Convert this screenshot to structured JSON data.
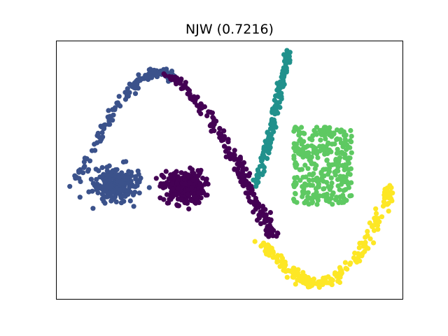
{
  "chart_data": {
    "type": "scatter",
    "title": "NJW (0.7216)",
    "xlabel": "",
    "ylabel": "",
    "xlim": [
      0,
      100
    ],
    "ylim": [
      0,
      100
    ],
    "grid": false,
    "show_ticks": false,
    "colors": {
      "dark_blue": "#3b528b",
      "purple": "#440154",
      "teal": "#21918c",
      "green": "#5ec962",
      "yellow": "#fde725"
    },
    "clusters": [
      {
        "shape": "curve",
        "color": "dark_blue",
        "n": 150,
        "spread": 0.9,
        "path": [
          [
            5,
            45.6
          ],
          [
            8,
            52
          ],
          [
            11,
            59.5
          ],
          [
            14,
            67.1
          ],
          [
            17,
            73.5
          ],
          [
            20,
            78.9
          ],
          [
            23,
            83
          ],
          [
            25,
            85.3
          ],
          [
            27,
            86.8
          ],
          [
            29,
            87.6
          ],
          [
            31,
            87.6
          ],
          [
            33,
            86.5
          ],
          [
            34.5,
            85
          ]
        ]
      },
      {
        "shape": "blob",
        "color": "dark_blue",
        "n": 260,
        "cx": 17.1,
        "cy": 44.3,
        "sx": 3.0,
        "sy": 3.2
      },
      {
        "shape": "curve",
        "color": "purple",
        "n": 210,
        "spread": 0.9,
        "path": [
          [
            32.5,
            86.2
          ],
          [
            36,
            83.5
          ],
          [
            39,
            79.5
          ],
          [
            42,
            74.3
          ],
          [
            45,
            68.4
          ],
          [
            48,
            62.2
          ],
          [
            51,
            55.7
          ],
          [
            53,
            50.3
          ],
          [
            55,
            44.9
          ],
          [
            57,
            39.5
          ],
          [
            59,
            34.1
          ],
          [
            61,
            28.6
          ],
          [
            62.5,
            24.6
          ]
        ]
      },
      {
        "shape": "blob",
        "color": "purple",
        "n": 260,
        "cx": 36.8,
        "cy": 43.2,
        "sx": 3.0,
        "sy": 3.2
      },
      {
        "shape": "curve",
        "color": "teal",
        "n": 170,
        "spread": 0.55,
        "path": [
          [
            58,
            44.9
          ],
          [
            59.3,
            50.3
          ],
          [
            60.5,
            56.5
          ],
          [
            61.7,
            62.7
          ],
          [
            62.7,
            69
          ],
          [
            63.7,
            75.4
          ],
          [
            64.7,
            81.8
          ],
          [
            65.7,
            87.3
          ],
          [
            66.6,
            92.7
          ],
          [
            67.2,
            95.7
          ]
        ]
      },
      {
        "shape": "rect",
        "color": "green",
        "n": 300,
        "x0": 68.5,
        "x1": 85.5,
        "y0": 36.5,
        "y1": 66.5
      },
      {
        "shape": "curve",
        "color": "yellow",
        "n": 230,
        "spread": 0.9,
        "path": [
          [
            59.5,
            21.1
          ],
          [
            62,
            17.8
          ],
          [
            64.5,
            14.3
          ],
          [
            67.5,
            10.8
          ],
          [
            70.5,
            7.6
          ],
          [
            73.5,
            6
          ],
          [
            76,
            5.7
          ],
          [
            79,
            6.8
          ],
          [
            82,
            9.5
          ],
          [
            85,
            13
          ],
          [
            88,
            18.4
          ],
          [
            90.5,
            25.1
          ],
          [
            93,
            32.2
          ],
          [
            95.5,
            38.6
          ],
          [
            96.2,
            43.2
          ]
        ]
      }
    ]
  }
}
